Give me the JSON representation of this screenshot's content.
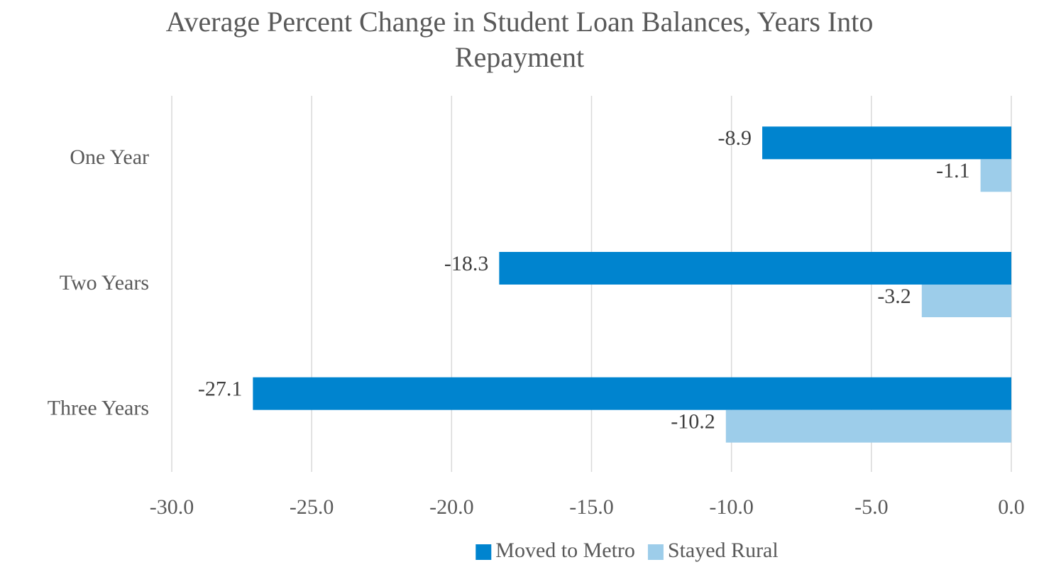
{
  "chart_data": {
    "type": "bar",
    "orientation": "horizontal",
    "title": "Average Percent Change in Student Loan Balances, Years Into Repayment",
    "categories": [
      "One Year",
      "Two Years",
      "Three Years"
    ],
    "series": [
      {
        "name": "Moved to Metro",
        "color": "#0084cf",
        "values": [
          -8.9,
          -18.3,
          -27.1
        ]
      },
      {
        "name": "Stayed Rural",
        "color": "#9dcdea",
        "values": [
          -1.1,
          -3.2,
          -10.2
        ]
      }
    ],
    "xlim": [
      -30,
      0
    ],
    "xticks": [
      {
        "value": -30,
        "label": "-30.0"
      },
      {
        "value": -25,
        "label": "-25.0"
      },
      {
        "value": -20,
        "label": "-20.0"
      },
      {
        "value": -15,
        "label": "-15.0"
      },
      {
        "value": -10,
        "label": "-10.0"
      },
      {
        "value": -5,
        "label": "-5.0"
      },
      {
        "value": 0,
        "label": "0.0"
      }
    ],
    "grid": true,
    "legend": "bottom"
  }
}
